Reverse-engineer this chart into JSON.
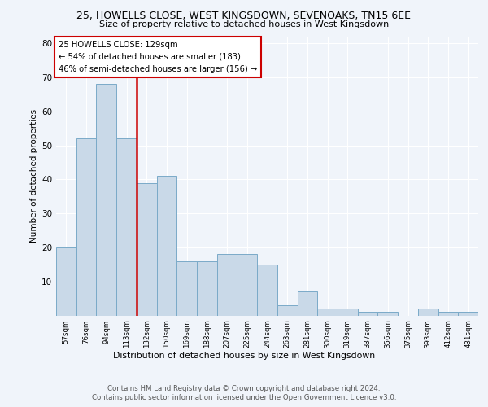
{
  "title1": "25, HOWELLS CLOSE, WEST KINGSDOWN, SEVENOAKS, TN15 6EE",
  "title2": "Size of property relative to detached houses in West Kingsdown",
  "xlabel": "Distribution of detached houses by size in West Kingsdown",
  "ylabel": "Number of detached properties",
  "categories": [
    "57sqm",
    "76sqm",
    "94sqm",
    "113sqm",
    "132sqm",
    "150sqm",
    "169sqm",
    "188sqm",
    "207sqm",
    "225sqm",
    "244sqm",
    "263sqm",
    "281sqm",
    "300sqm",
    "319sqm",
    "337sqm",
    "356sqm",
    "375sqm",
    "393sqm",
    "412sqm",
    "431sqm"
  ],
  "values": [
    20,
    52,
    68,
    52,
    39,
    41,
    16,
    16,
    18,
    18,
    15,
    3,
    7,
    2,
    2,
    1,
    1,
    0,
    2,
    1,
    1
  ],
  "bar_color": "#c9d9e8",
  "bar_edge_color": "#7aaac8",
  "vline_color": "#cc0000",
  "annotation_box_edge": "#cc0000",
  "annotation_line1": "25 HOWELLS CLOSE: 129sqm",
  "annotation_line2": "← 54% of detached houses are smaller (183)",
  "annotation_line3": "46% of semi-detached houses are larger (156) →",
  "footer1": "Contains HM Land Registry data © Crown copyright and database right 2024.",
  "footer2": "Contains public sector information licensed under the Open Government Licence v3.0.",
  "ylim": [
    0,
    82
  ],
  "bg_color": "#f0f4fa"
}
